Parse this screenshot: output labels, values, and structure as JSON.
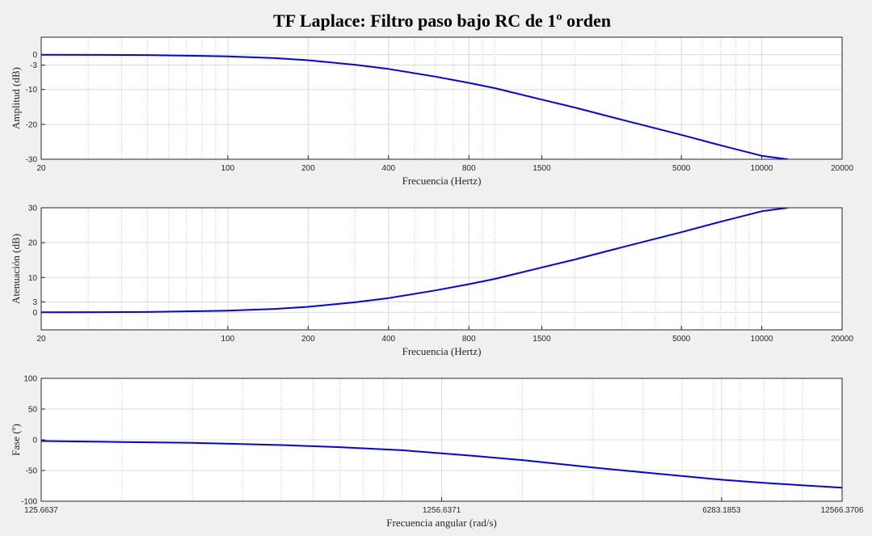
{
  "figure": {
    "title": "TF Laplace: Filtro paso bajo RC de 1º orden",
    "line_color": "#0000ff",
    "background": "#f0f0f0",
    "axes_background": "#ffffff"
  },
  "chart_data": [
    {
      "type": "line",
      "name": "amplitude",
      "xlabel": "Frecuencia (Hertz)",
      "ylabel": "Amplitud (dB)",
      "xscale": "log",
      "xlim": [
        20,
        20000
      ],
      "ylim": [
        -30,
        5
      ],
      "xticks": [
        20,
        100,
        200,
        400,
        800,
        1500,
        5000,
        10000,
        20000
      ],
      "xtick_labels": [
        "20",
        "100",
        "200",
        "400",
        "800",
        "1500",
        "5000",
        "10000",
        "20000"
      ],
      "yticks": [
        -30,
        -20,
        -10,
        -3,
        0
      ],
      "ytick_labels": [
        "-30",
        "-20",
        "-10",
        "-3",
        "0"
      ],
      "grid": true,
      "series": [
        {
          "x": [
            20,
            50,
            100,
            150,
            200,
            300,
            400,
            600,
            800,
            1000,
            1500,
            2000,
            3000,
            5000,
            7000,
            10000,
            12500
          ],
          "y": [
            -0.02,
            -0.13,
            -0.5,
            -1.0,
            -1.6,
            -2.9,
            -4.1,
            -6.3,
            -8.1,
            -9.6,
            -12.9,
            -15.2,
            -18.7,
            -23.0,
            -26.0,
            -29.0,
            -30.0
          ]
        }
      ]
    },
    {
      "type": "line",
      "name": "attenuation",
      "xlabel": "Frecuencia (Hertz)",
      "ylabel": "Atenuación (dB)",
      "xscale": "log",
      "xlim": [
        20,
        20000
      ],
      "ylim": [
        -5,
        30
      ],
      "xticks": [
        20,
        100,
        200,
        400,
        800,
        1500,
        5000,
        10000,
        20000
      ],
      "xtick_labels": [
        "20",
        "100",
        "200",
        "400",
        "800",
        "1500",
        "5000",
        "10000",
        "20000"
      ],
      "yticks": [
        0,
        3,
        10,
        20,
        30
      ],
      "ytick_labels": [
        "0",
        "3",
        "10",
        "20",
        "30"
      ],
      "grid": true,
      "series": [
        {
          "x": [
            20,
            50,
            100,
            150,
            200,
            300,
            400,
            600,
            800,
            1000,
            1500,
            2000,
            3000,
            5000,
            7000,
            10000,
            12500
          ],
          "y": [
            0.02,
            0.13,
            0.5,
            1.0,
            1.6,
            2.9,
            4.1,
            6.3,
            8.1,
            9.6,
            12.9,
            15.2,
            18.7,
            23.0,
            26.0,
            29.0,
            30.0
          ]
        }
      ]
    },
    {
      "type": "line",
      "name": "phase",
      "xlabel": "Frecuencia angular (rad/s)",
      "ylabel": "Fase (º)",
      "xscale": "log",
      "xlim": [
        125.6637,
        12566.3706
      ],
      "ylim": [
        -100,
        100
      ],
      "xticks": [
        125.6637,
        1256.6371,
        6283.1853,
        12566.3706
      ],
      "xtick_labels": [
        "125.6637",
        "1256.6371",
        "6283.1853",
        "12566.3706"
      ],
      "yticks": [
        -100,
        -50,
        0,
        50,
        100
      ],
      "ytick_labels": [
        "-100",
        "-50",
        "0",
        "50",
        "100"
      ],
      "grid": true,
      "series": [
        {
          "x": [
            125.6637,
            200,
            300,
            500,
            700,
            1000,
            1256.6371,
            1500,
            2000,
            3000,
            4000,
            5000,
            6283.1853,
            8000,
            10000,
            12566.3706
          ],
          "y": [
            -2,
            -3.5,
            -5,
            -8.5,
            -12,
            -17,
            -22,
            -26,
            -33,
            -45,
            -53,
            -59,
            -65,
            -70,
            -74,
            -78
          ]
        }
      ]
    }
  ]
}
